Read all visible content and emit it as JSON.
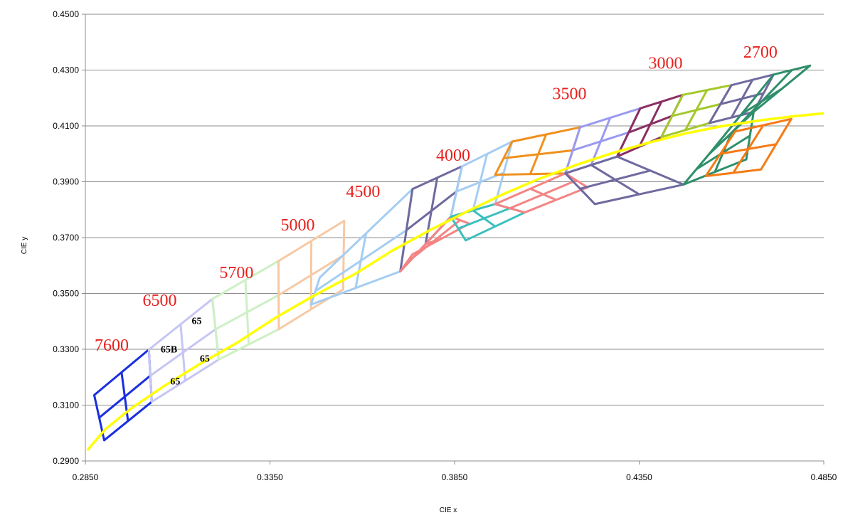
{
  "chart_data": {
    "type": "line",
    "title": "",
    "xlabel": "CIE x",
    "ylabel": "CIE y",
    "xlim": [
      0.285,
      0.485
    ],
    "ylim": [
      0.29,
      0.45
    ],
    "x_ticks": [
      "0.2850",
      "0.3350",
      "0.3850",
      "0.4350",
      "0.4850"
    ],
    "x_tick_values": [
      0.285,
      0.335,
      0.385,
      0.435,
      0.485
    ],
    "y_ticks": [
      "0.2900",
      "0.3100",
      "0.3300",
      "0.3500",
      "0.3700",
      "0.3900",
      "0.4100",
      "0.4300",
      "0.4500"
    ],
    "y_tick_values": [
      0.29,
      0.31,
      0.33,
      0.35,
      0.37,
      0.39,
      0.41,
      0.43,
      0.45
    ],
    "grid": "horizontal",
    "legend": "none",
    "planckian_locus": {
      "color": "#ffff00",
      "x": [
        0.2855,
        0.2905,
        0.2975,
        0.3063,
        0.3161,
        0.3263,
        0.3364,
        0.3466,
        0.3582,
        0.3681,
        0.3781,
        0.388,
        0.3979,
        0.4078,
        0.4177,
        0.4276,
        0.4376,
        0.4475,
        0.4574,
        0.4673,
        0.4772,
        0.485
      ],
      "y": [
        0.2938,
        0.3015,
        0.3089,
        0.3168,
        0.3248,
        0.3325,
        0.3412,
        0.349,
        0.3571,
        0.3653,
        0.3725,
        0.3791,
        0.3854,
        0.391,
        0.3959,
        0.4002,
        0.404,
        0.4073,
        0.4099,
        0.4119,
        0.4135,
        0.4145
      ]
    },
    "cct_labels": [
      {
        "text": "7600",
        "x": 0.2875,
        "y": 0.3295
      },
      {
        "text": "6500",
        "x": 0.3005,
        "y": 0.3455
      },
      {
        "text": "5700",
        "x": 0.3213,
        "y": 0.3555
      },
      {
        "text": "5000",
        "x": 0.3379,
        "y": 0.3725
      },
      {
        "text": "4500",
        "x": 0.3556,
        "y": 0.3845
      },
      {
        "text": "4000",
        "x": 0.38,
        "y": 0.3975
      },
      {
        "text": "3500",
        "x": 0.4115,
        "y": 0.4195
      },
      {
        "text": "3000",
        "x": 0.4375,
        "y": 0.4305
      },
      {
        "text": "2700",
        "x": 0.4632,
        "y": 0.4345
      }
    ],
    "bin_labels": [
      {
        "text": "65",
        "x": 0.3138,
        "y": 0.339
      },
      {
        "text": "65B",
        "x": 0.3054,
        "y": 0.3289
      },
      {
        "text": "65",
        "x": 0.316,
        "y": 0.3256
      },
      {
        "text": "65",
        "x": 0.308,
        "y": 0.3174
      }
    ],
    "bin_quads": [
      {
        "cct": "7600",
        "color": "#1a2fe0",
        "corners": [
          [
            0.2874,
            0.3136
          ],
          [
            0.3022,
            0.3299
          ],
          [
            0.303,
            0.3112
          ],
          [
            0.2901,
            0.2974
          ]
        ]
      },
      {
        "cct": "6500",
        "color": "#c6c6f4",
        "corners": [
          [
            0.3022,
            0.3299
          ],
          [
            0.3194,
            0.348
          ],
          [
            0.3211,
            0.3263
          ],
          [
            0.303,
            0.3112
          ]
        ]
      },
      {
        "cct": "5700",
        "color": "#cdf0c4",
        "corners": [
          [
            0.3194,
            0.348
          ],
          [
            0.3373,
            0.3616
          ],
          [
            0.3374,
            0.3372
          ],
          [
            0.3211,
            0.3263
          ]
        ]
      },
      {
        "cct": "5000",
        "color": "#f7c9a4",
        "corners": [
          [
            0.3373,
            0.3616
          ],
          [
            0.3551,
            0.376
          ],
          [
            0.3548,
            0.3514
          ],
          [
            0.3374,
            0.3372
          ]
        ]
      },
      {
        "cct": "4500",
        "color": "#a5cdf2",
        "corners": [
          [
            0.3485,
            0.3557
          ],
          [
            0.3736,
            0.3874
          ],
          [
            0.3703,
            0.3579
          ],
          [
            0.3461,
            0.346
          ]
        ]
      },
      {
        "cct": "4500",
        "color": "#6f6a9f",
        "corners": [
          [
            0.3736,
            0.3874
          ],
          [
            0.387,
            0.3955
          ],
          [
            0.384,
            0.3775
          ],
          [
            0.3703,
            0.3579
          ]
        ]
      },
      {
        "cct": "4000",
        "color": "#a5cdf2",
        "corners": [
          [
            0.387,
            0.3955
          ],
          [
            0.4006,
            0.4044
          ],
          [
            0.396,
            0.382
          ],
          [
            0.384,
            0.3775
          ]
        ]
      },
      {
        "cct": "4000",
        "color": "#f48484",
        "corners": [
          [
            0.3703,
            0.3579
          ],
          [
            0.384,
            0.3775
          ],
          [
            0.389,
            0.375
          ],
          [
            0.3736,
            0.364
          ]
        ]
      },
      {
        "cct": "4000",
        "color": "#3dbfbf",
        "corners": [
          [
            0.384,
            0.3775
          ],
          [
            0.396,
            0.382
          ],
          [
            0.404,
            0.379
          ],
          [
            0.388,
            0.369
          ]
        ]
      },
      {
        "cct": "3500",
        "color": "#f0901c",
        "corners": [
          [
            0.4006,
            0.4044
          ],
          [
            0.419,
            0.4095
          ],
          [
            0.415,
            0.393
          ],
          [
            0.396,
            0.3925
          ]
        ]
      },
      {
        "cct": "3500",
        "color": "#f48484",
        "corners": [
          [
            0.396,
            0.382
          ],
          [
            0.415,
            0.393
          ],
          [
            0.421,
            0.388
          ],
          [
            0.404,
            0.379
          ]
        ]
      },
      {
        "cct": "3500",
        "color": "#9a9af0",
        "corners": [
          [
            0.419,
            0.4095
          ],
          [
            0.4353,
            0.4163
          ],
          [
            0.429,
            0.399
          ],
          [
            0.415,
            0.393
          ]
        ]
      },
      {
        "cct": "3000",
        "color": "#8a2f63",
        "corners": [
          [
            0.4353,
            0.4163
          ],
          [
            0.4468,
            0.4211
          ],
          [
            0.441,
            0.406
          ],
          [
            0.429,
            0.399
          ]
        ]
      },
      {
        "cct": "3000",
        "color": "#6f6a9f",
        "corners": [
          [
            0.415,
            0.393
          ],
          [
            0.429,
            0.399
          ],
          [
            0.447,
            0.389
          ],
          [
            0.423,
            0.382
          ]
        ]
      },
      {
        "cct": "3000",
        "color": "#a4c82c",
        "corners": [
          [
            0.4468,
            0.4211
          ],
          [
            0.46,
            0.4246
          ],
          [
            0.454,
            0.411
          ],
          [
            0.441,
            0.406
          ]
        ]
      },
      {
        "cct": "2700",
        "color": "#6f6a9f",
        "corners": [
          [
            0.46,
            0.4246
          ],
          [
            0.4714,
            0.4284
          ],
          [
            0.466,
            0.415
          ],
          [
            0.454,
            0.411
          ]
        ]
      },
      {
        "cct": "2700",
        "color": "#2f8f6a",
        "corners": [
          [
            0.4714,
            0.4284
          ],
          [
            0.4813,
            0.4316
          ],
          [
            0.466,
            0.415
          ],
          [
            0.454,
            0.4
          ]
        ]
      },
      {
        "cct": "2700",
        "color": "#2f8f6a",
        "corners": [
          [
            0.454,
            0.4
          ],
          [
            0.466,
            0.415
          ],
          [
            0.464,
            0.398
          ],
          [
            0.447,
            0.389
          ]
        ]
      },
      {
        "cct": "2700",
        "color": "#f57a14",
        "corners": [
          [
            0.461,
            0.408
          ],
          [
            0.4762,
            0.4125
          ],
          [
            0.468,
            0.3944
          ],
          [
            0.453,
            0.392
          ]
        ]
      }
    ]
  }
}
